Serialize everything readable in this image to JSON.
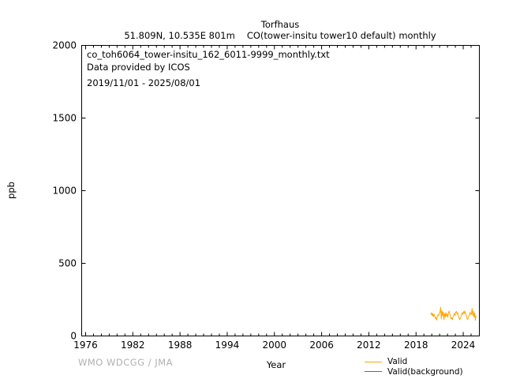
{
  "header": {
    "station": "Torfhaus",
    "location": "51.809N, 10.535E 801m",
    "parameter": "CO(tower-insitu tower10 default) monthly"
  },
  "annotation": {
    "filename": "co_toh6064_tower-insitu_162_6011-9999_monthly.txt",
    "provider": "Data provided by ICOS",
    "period": "2019/11/01 - 2025/08/01"
  },
  "footer": {
    "credit": "WMO WDCGG / JMA"
  },
  "colors": {
    "valid": "#ffa500",
    "valid_background": "#2e8b57",
    "axis": "#000000",
    "credit_gray": "#b0b0b0"
  },
  "chart_data": {
    "type": "line",
    "title": "Torfhaus",
    "subtitle": "51.809N, 10.535E 801m    CO(tower-insitu tower10 default) monthly",
    "xlabel": "Year",
    "ylabel": "ppb",
    "xlim": [
      1975.5,
      2026.05
    ],
    "ylim": [
      0,
      2000
    ],
    "xticks_major": [
      1976,
      1982,
      1988,
      1994,
      2000,
      2006,
      2012,
      2018,
      2024
    ],
    "xtick_minor_step_years": 1,
    "yticks": [
      0,
      500,
      1000,
      1500,
      2000
    ],
    "grid": false,
    "legend_position": "bottom-right-below-axis",
    "series": [
      {
        "name": "Valid",
        "color": "#ffa500",
        "start_year": 2019,
        "start_month": 11,
        "unit": "ppb",
        "values": [
          148,
          160,
          140,
          155,
          132,
          150,
          136,
          120,
          128,
          110,
          134,
          146,
          139,
          158,
          164,
          198,
          118,
          175,
          138,
          165,
          112,
          155,
          130,
          160,
          136,
          152,
          128,
          162,
          171,
          155,
          132,
          118,
          126,
          112,
          130,
          144,
          155,
          140,
          162,
          170,
          152,
          160,
          138,
          124,
          112,
          120,
          134,
          148,
          160,
          150,
          168,
          154,
          172,
          158,
          140,
          126,
          114,
          122,
          136,
          150,
          162,
          148,
          150,
          190,
          140,
          172,
          130,
          158,
          108,
          140
        ]
      },
      {
        "name": "Valid(background)",
        "color": "#2e8b57",
        "values": []
      }
    ]
  }
}
